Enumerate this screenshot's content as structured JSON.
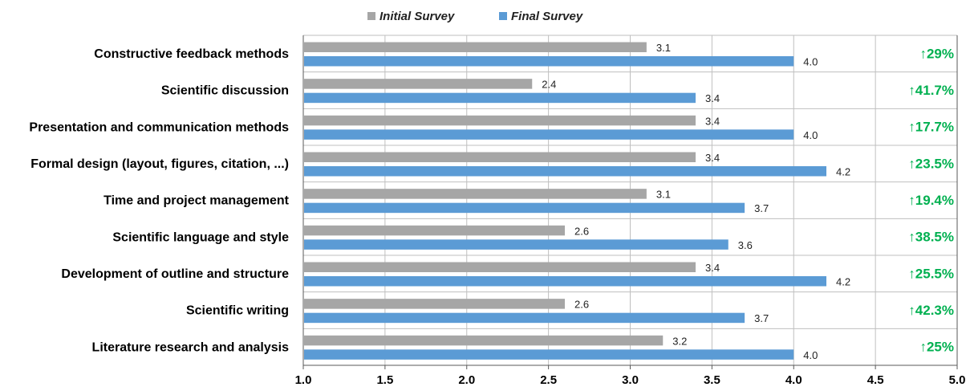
{
  "chart_data": {
    "type": "bar",
    "orientation": "horizontal",
    "categories": [
      "Constructive feedback methods",
      "Scientific discussion",
      "Presentation and communication methods",
      "Formal design (layout, figures, citation, ...)",
      "Time and project management",
      "Scientific language and style",
      "Development of outline and structure",
      "Scientific writing",
      "Literature research and analysis"
    ],
    "series": [
      {
        "name": "Initial Survey",
        "color": "#a6a6a6",
        "values": [
          3.1,
          2.4,
          3.4,
          3.4,
          3.1,
          2.6,
          3.4,
          2.6,
          3.2
        ],
        "labels": [
          "3.1",
          "2.4",
          "3.4",
          "3.4",
          "3.1",
          "2.6",
          "3.4",
          "2.6",
          "3.2"
        ]
      },
      {
        "name": "Final Survey",
        "color": "#5b9bd5",
        "values": [
          4.0,
          3.4,
          4.0,
          4.2,
          3.7,
          3.6,
          4.2,
          3.7,
          4.0
        ],
        "labels": [
          "4.0",
          "3.4",
          "4.0",
          "4.2",
          "3.7",
          "3.6",
          "4.2",
          "3.7",
          "4.0"
        ]
      }
    ],
    "improvements": [
      "↑29%",
      "↑41.7%",
      "↑17.7%",
      "↑23.5%",
      "↑19.4%",
      "↑38.5%",
      "↑25.5%",
      "↑42.3%",
      "↑25%"
    ],
    "improvement_color": "#00b050",
    "xlim": [
      1.0,
      5.0
    ],
    "xticks": [
      "1.0",
      "1.5",
      "2.0",
      "2.5",
      "3.0",
      "3.5",
      "4.0",
      "4.5",
      "5.0"
    ],
    "xlabel": "",
    "ylabel": "",
    "title": "",
    "grid": true,
    "legend_position": "top"
  }
}
